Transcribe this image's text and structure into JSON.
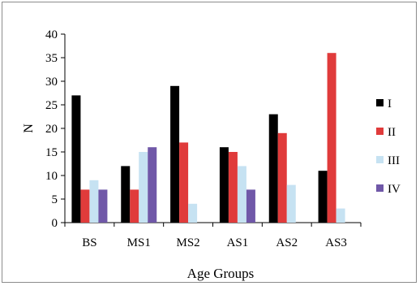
{
  "chart_data": {
    "type": "bar",
    "title": "",
    "xlabel": "Age Groups",
    "ylabel": "N",
    "ylim": [
      0,
      40
    ],
    "yticks": [
      0,
      5,
      10,
      15,
      20,
      25,
      30,
      35,
      40
    ],
    "categories": [
      "BS",
      "MS1",
      "MS2",
      "AS1",
      "AS2",
      "AS3"
    ],
    "grid": false,
    "legend_position": "right",
    "series": [
      {
        "name": "I",
        "color": "#000000",
        "values": [
          27,
          12,
          29,
          16,
          23,
          11
        ]
      },
      {
        "name": "II",
        "color": "#e03b3b",
        "values": [
          7,
          7,
          17,
          15,
          19,
          36
        ]
      },
      {
        "name": "III",
        "color": "#c6e2f2",
        "values": [
          9,
          15,
          4,
          12,
          8,
          3
        ]
      },
      {
        "name": "IV",
        "color": "#7058a8",
        "values": [
          7,
          16,
          0,
          7,
          0,
          0
        ]
      }
    ]
  }
}
